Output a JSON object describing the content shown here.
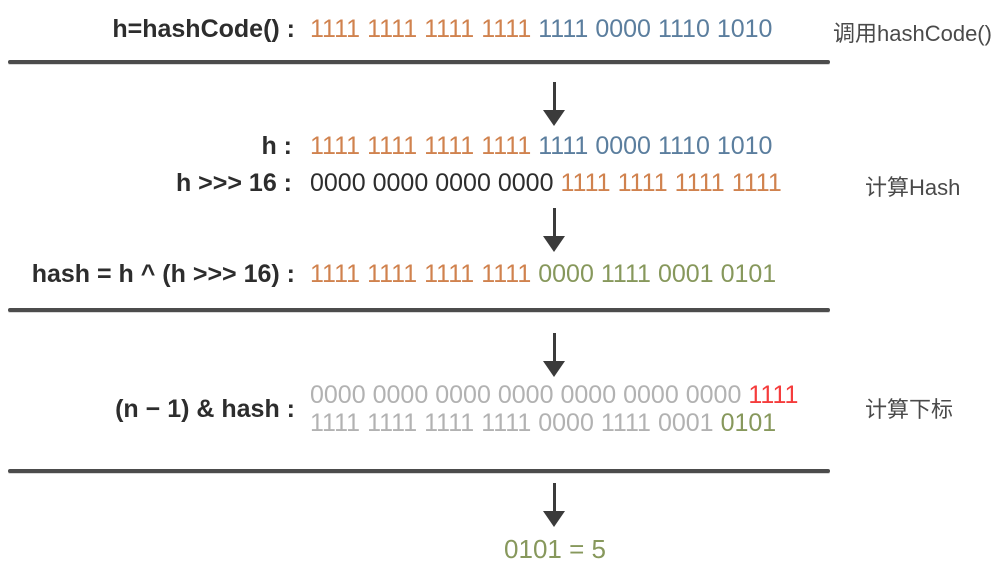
{
  "colors": {
    "orange": "#d0824e",
    "blue": "#5b7e9e",
    "olive": "#87985c",
    "red": "#f53c3c",
    "gray": "#b2b2b2",
    "dark": "#2d2d2d"
  },
  "stage_hashcode": {
    "label": "h=hashCode() :",
    "annotation": "调用hashCode()",
    "groups": [
      {
        "text": "1111",
        "color": "orange"
      },
      {
        "text": "1111",
        "color": "orange"
      },
      {
        "text": "1111",
        "color": "orange"
      },
      {
        "text": "1111",
        "color": "orange"
      },
      {
        "text": "1111",
        "color": "blue"
      },
      {
        "text": "0000",
        "color": "blue"
      },
      {
        "text": "1110",
        "color": "blue"
      },
      {
        "text": "1010",
        "color": "blue"
      }
    ]
  },
  "stage_hash": {
    "annotation": "计算Hash",
    "row_h": {
      "label": "h :",
      "groups": [
        {
          "text": "1111",
          "color": "orange"
        },
        {
          "text": "1111",
          "color": "orange"
        },
        {
          "text": "1111",
          "color": "orange"
        },
        {
          "text": "1111",
          "color": "orange"
        },
        {
          "text": "1111",
          "color": "blue"
        },
        {
          "text": "0000",
          "color": "blue"
        },
        {
          "text": "1110",
          "color": "blue"
        },
        {
          "text": "1010",
          "color": "blue"
        }
      ]
    },
    "row_shift": {
      "label": "h >>> 16 :",
      "groups": [
        {
          "text": "0000",
          "color": "dark"
        },
        {
          "text": "0000",
          "color": "dark"
        },
        {
          "text": "0000",
          "color": "dark"
        },
        {
          "text": "0000",
          "color": "dark"
        },
        {
          "text": "1111",
          "color": "orange"
        },
        {
          "text": "1111",
          "color": "orange"
        },
        {
          "text": "1111",
          "color": "orange"
        },
        {
          "text": "1111",
          "color": "orange"
        }
      ]
    },
    "row_result": {
      "label": "hash = h ^ (h >>> 16) :",
      "groups": [
        {
          "text": "1111",
          "color": "orange"
        },
        {
          "text": "1111",
          "color": "orange"
        },
        {
          "text": "1111",
          "color": "orange"
        },
        {
          "text": "1111",
          "color": "orange"
        },
        {
          "text": "0000",
          "color": "olive"
        },
        {
          "text": "1111",
          "color": "olive"
        },
        {
          "text": "0001",
          "color": "olive"
        },
        {
          "text": "0101",
          "color": "olive"
        }
      ]
    }
  },
  "stage_index": {
    "label": "(n − 1) & hash :",
    "annotation": "计算下标",
    "row_n_minus_1": {
      "groups": [
        {
          "text": "0000",
          "color": "gray"
        },
        {
          "text": "0000",
          "color": "gray"
        },
        {
          "text": "0000",
          "color": "gray"
        },
        {
          "text": "0000",
          "color": "gray"
        },
        {
          "text": "0000",
          "color": "gray"
        },
        {
          "text": "0000",
          "color": "gray"
        },
        {
          "text": "0000",
          "color": "gray"
        },
        {
          "text": "1111",
          "color": "red"
        }
      ]
    },
    "row_hash": {
      "groups": [
        {
          "text": "1111",
          "color": "gray"
        },
        {
          "text": "1111",
          "color": "gray"
        },
        {
          "text": "1111",
          "color": "gray"
        },
        {
          "text": "1111",
          "color": "gray"
        },
        {
          "text": "0000",
          "color": "gray"
        },
        {
          "text": "1111",
          "color": "gray"
        },
        {
          "text": "0001",
          "color": "gray"
        },
        {
          "text": "0101",
          "color": "olive"
        }
      ]
    }
  },
  "result": {
    "text": "0101 = 5"
  }
}
